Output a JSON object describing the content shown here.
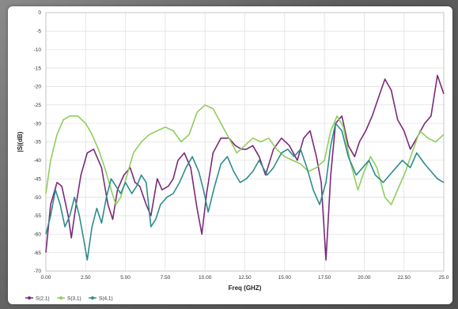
{
  "chart_data": {
    "type": "line",
    "title": "",
    "xlabel": "Freq (GHZ)",
    "ylabel": "|S|(dB)",
    "xlim": [
      0,
      25
    ],
    "ylim": [
      -70,
      0
    ],
    "x_ticks": [
      "0.00",
      "2.50",
      "5.00",
      "7.50",
      "10.00",
      "12.50",
      "15.00",
      "17.50",
      "20.00",
      "22.50",
      "25.0"
    ],
    "y_ticks": [
      "0",
      "-5",
      "-10",
      "-15",
      "-20",
      "-25",
      "-30",
      "-35",
      "-40",
      "-45",
      "-50",
      "-55",
      "-60",
      "-65",
      "-70"
    ],
    "grid": true,
    "legend_placement": "bottom-left",
    "series": [
      {
        "name": "S(2,1)",
        "color": "#7a2a7a",
        "points": [
          [
            0,
            -65
          ],
          [
            0.3,
            -52
          ],
          [
            0.7,
            -46
          ],
          [
            1.0,
            -47
          ],
          [
            1.4,
            -55
          ],
          [
            1.6,
            -61
          ],
          [
            1.9,
            -52
          ],
          [
            2.2,
            -44
          ],
          [
            2.6,
            -38
          ],
          [
            3.0,
            -37
          ],
          [
            3.5,
            -42
          ],
          [
            3.9,
            -52
          ],
          [
            4.2,
            -56
          ],
          [
            4.5,
            -48
          ],
          [
            4.9,
            -44
          ],
          [
            5.3,
            -42
          ],
          [
            5.6,
            -46
          ],
          [
            5.9,
            -47
          ],
          [
            6.3,
            -52
          ],
          [
            6.6,
            -55
          ],
          [
            7.0,
            -45
          ],
          [
            7.3,
            -48
          ],
          [
            7.7,
            -47
          ],
          [
            8.0,
            -45
          ],
          [
            8.3,
            -40
          ],
          [
            8.7,
            -38
          ],
          [
            9.1,
            -42
          ],
          [
            9.5,
            -53
          ],
          [
            9.8,
            -60
          ],
          [
            10.1,
            -49
          ],
          [
            10.5,
            -38
          ],
          [
            11.0,
            -34
          ],
          [
            11.5,
            -34
          ],
          [
            11.9,
            -36
          ],
          [
            12.3,
            -37
          ],
          [
            12.6,
            -37
          ],
          [
            13.0,
            -36
          ],
          [
            13.4,
            -39
          ],
          [
            13.8,
            -44
          ],
          [
            14.3,
            -37
          ],
          [
            14.8,
            -34
          ],
          [
            15.3,
            -36
          ],
          [
            15.8,
            -40
          ],
          [
            16.2,
            -34
          ],
          [
            16.6,
            -32
          ],
          [
            17.0,
            -39
          ],
          [
            17.3,
            -46
          ],
          [
            17.6,
            -67
          ],
          [
            17.9,
            -44
          ],
          [
            18.2,
            -30
          ],
          [
            18.6,
            -28
          ],
          [
            19.0,
            -36
          ],
          [
            19.4,
            -39
          ],
          [
            19.7,
            -35
          ],
          [
            20.1,
            -32
          ],
          [
            20.5,
            -28
          ],
          [
            20.9,
            -23
          ],
          [
            21.3,
            -18
          ],
          [
            21.7,
            -21
          ],
          [
            22.1,
            -29
          ],
          [
            22.5,
            -32
          ],
          [
            22.9,
            -37
          ],
          [
            23.3,
            -34
          ],
          [
            23.8,
            -30
          ],
          [
            24.2,
            -28
          ],
          [
            24.6,
            -17
          ],
          [
            25,
            -22
          ]
        ]
      },
      {
        "name": "S(3,1)",
        "color": "#8fce5c",
        "points": [
          [
            0,
            -49
          ],
          [
            0.3,
            -40
          ],
          [
            0.7,
            -33
          ],
          [
            1.1,
            -29
          ],
          [
            1.5,
            -28
          ],
          [
            2.0,
            -28
          ],
          [
            2.5,
            -30
          ],
          [
            2.9,
            -33
          ],
          [
            3.3,
            -37
          ],
          [
            3.7,
            -42
          ],
          [
            4.1,
            -48
          ],
          [
            4.4,
            -52
          ],
          [
            4.7,
            -50
          ],
          [
            5.1,
            -44
          ],
          [
            5.5,
            -38
          ],
          [
            6.0,
            -35
          ],
          [
            6.5,
            -33
          ],
          [
            7.0,
            -32
          ],
          [
            7.5,
            -31
          ],
          [
            8.0,
            -32
          ],
          [
            8.5,
            -35
          ],
          [
            9.0,
            -33
          ],
          [
            9.5,
            -27
          ],
          [
            10.0,
            -25
          ],
          [
            10.5,
            -26
          ],
          [
            11.0,
            -30
          ],
          [
            11.5,
            -34
          ],
          [
            12.0,
            -38
          ],
          [
            12.5,
            -36
          ],
          [
            13.0,
            -34
          ],
          [
            13.5,
            -35
          ],
          [
            14.0,
            -34
          ],
          [
            14.5,
            -37
          ],
          [
            15.0,
            -39
          ],
          [
            15.5,
            -40
          ],
          [
            16.0,
            -41
          ],
          [
            16.5,
            -43
          ],
          [
            17.0,
            -42
          ],
          [
            17.5,
            -40
          ],
          [
            17.9,
            -32
          ],
          [
            18.3,
            -28
          ],
          [
            18.7,
            -31
          ],
          [
            19.1,
            -40
          ],
          [
            19.6,
            -48
          ],
          [
            20.0,
            -43
          ],
          [
            20.4,
            -39
          ],
          [
            20.8,
            -42
          ],
          [
            21.3,
            -50
          ],
          [
            21.7,
            -52
          ],
          [
            22.1,
            -48
          ],
          [
            22.6,
            -43
          ],
          [
            23.0,
            -38
          ],
          [
            23.5,
            -32
          ],
          [
            24.0,
            -34
          ],
          [
            24.5,
            -35
          ],
          [
            25,
            -33
          ]
        ]
      },
      {
        "name": "S(4,1)",
        "color": "#2d8c8c",
        "points": [
          [
            0,
            -60
          ],
          [
            0.3,
            -55
          ],
          [
            0.6,
            -48
          ],
          [
            0.9,
            -52
          ],
          [
            1.2,
            -58
          ],
          [
            1.5,
            -55
          ],
          [
            1.8,
            -50
          ],
          [
            2.1,
            -55
          ],
          [
            2.4,
            -62
          ],
          [
            2.6,
            -67
          ],
          [
            2.9,
            -58
          ],
          [
            3.2,
            -53
          ],
          [
            3.5,
            -57
          ],
          [
            3.8,
            -50
          ],
          [
            4.1,
            -45
          ],
          [
            4.4,
            -47
          ],
          [
            4.7,
            -49
          ],
          [
            5.0,
            -46
          ],
          [
            5.4,
            -49
          ],
          [
            5.7,
            -47
          ],
          [
            6.0,
            -44
          ],
          [
            6.3,
            -46
          ],
          [
            6.6,
            -58
          ],
          [
            6.9,
            -56
          ],
          [
            7.2,
            -52
          ],
          [
            7.6,
            -50
          ],
          [
            8.0,
            -49
          ],
          [
            8.4,
            -46
          ],
          [
            8.8,
            -42
          ],
          [
            9.2,
            -39
          ],
          [
            9.6,
            -43
          ],
          [
            9.9,
            -48
          ],
          [
            10.2,
            -54
          ],
          [
            10.6,
            -47
          ],
          [
            11.0,
            -41
          ],
          [
            11.4,
            -39
          ],
          [
            11.8,
            -43
          ],
          [
            12.2,
            -46
          ],
          [
            12.6,
            -45
          ],
          [
            13.0,
            -43
          ],
          [
            13.4,
            -40
          ],
          [
            13.9,
            -44
          ],
          [
            14.3,
            -42
          ],
          [
            14.8,
            -38
          ],
          [
            15.2,
            -37
          ],
          [
            15.6,
            -39
          ],
          [
            16.0,
            -37
          ],
          [
            16.4,
            -42
          ],
          [
            16.8,
            -48
          ],
          [
            17.2,
            -52
          ],
          [
            17.6,
            -46
          ],
          [
            17.9,
            -36
          ],
          [
            18.2,
            -30
          ],
          [
            18.6,
            -32
          ],
          [
            19.0,
            -39
          ],
          [
            19.5,
            -44
          ],
          [
            19.9,
            -42
          ],
          [
            20.3,
            -40
          ],
          [
            20.7,
            -44
          ],
          [
            21.2,
            -46
          ],
          [
            21.6,
            -44
          ],
          [
            22.0,
            -42
          ],
          [
            22.4,
            -40
          ],
          [
            22.9,
            -42
          ],
          [
            23.3,
            -38
          ],
          [
            23.8,
            -41
          ],
          [
            24.2,
            -43
          ],
          [
            24.6,
            -45
          ],
          [
            25,
            -46
          ]
        ]
      }
    ]
  }
}
